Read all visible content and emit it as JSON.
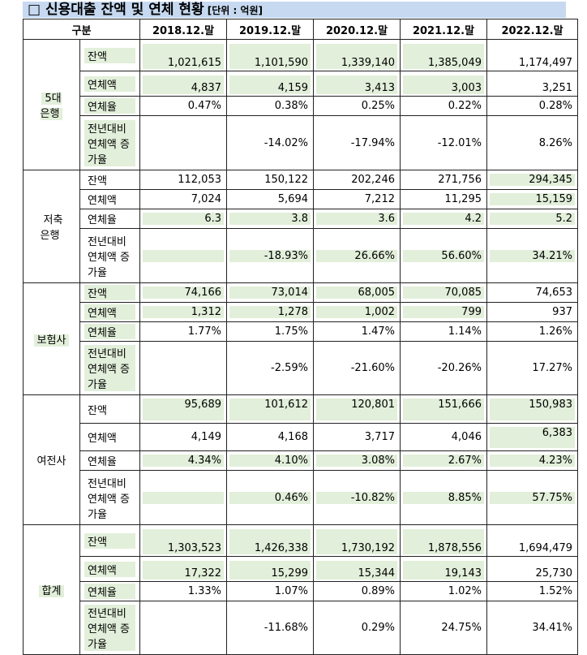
{
  "title": "□ 신용대출 잔액 및 연체 현황",
  "unit": "[단위 : 억원]",
  "table": {
    "header": [
      "구분",
      "2018.12.말",
      "2019.12.말",
      "2020.12.말",
      "2021.12.말",
      "2022.12.말"
    ],
    "groups": [
      {
        "name": "5대\n은행",
        "rows": [
          {
            "label": "잔액",
            "cells": [
              "1,021,615",
              "1,101,590",
              "1,339,140",
              "1,385,049",
              "1,174,497"
            ]
          },
          {
            "label": "연체액",
            "cells": [
              "4,837",
              "4,159",
              "3,413",
              "3,003",
              "3,251"
            ]
          },
          {
            "label": "연체율",
            "cells": [
              "0.47%",
              "0.38%",
              "0.25%",
              "0.22%",
              "0.28%"
            ]
          },
          {
            "label": "전년대비 연체액 증가율",
            "cells": [
              null,
              "-14.02%",
              "-17.94%",
              "-12.01%",
              "8.26%"
            ]
          }
        ]
      },
      {
        "name": "저축\n은행",
        "rows": [
          {
            "label": "잔액",
            "cells": [
              "112,053",
              "150,122",
              "202,246",
              "271,756",
              "294,345"
            ]
          },
          {
            "label": "연체액",
            "cells": [
              "7,024",
              "5,694",
              "7,212",
              "11,295",
              "15,159"
            ]
          },
          {
            "label": "연체율",
            "cells": [
              "6.3",
              "3.8",
              "3.6",
              "4.2",
              "5.2"
            ]
          },
          {
            "label": "전년대비 연체액 증가율",
            "cells": [
              null,
              "-18.93%",
              "26.66%",
              "56.60%",
              "34.21%"
            ]
          }
        ]
      },
      {
        "name": "보험사",
        "rows": [
          {
            "label": "잔액",
            "cells": [
              "74,166",
              "73,014",
              "68,005",
              "70,085",
              "74,653"
            ]
          },
          {
            "label": "연체액",
            "cells": [
              "1,312",
              "1,278",
              "1,002",
              "799",
              "937"
            ]
          },
          {
            "label": "연체율",
            "cells": [
              "1.77%",
              "1.75%",
              "1.47%",
              "1.14%",
              "1.26%"
            ]
          },
          {
            "label": "전년대비 연체액 증가율",
            "cells": [
              null,
              "-2.59%",
              "-21.60%",
              "-20.26%",
              "17.27%"
            ]
          }
        ]
      },
      {
        "name": "여전사",
        "rows": [
          {
            "label": "잔액",
            "cells": [
              "95,689",
              "101,612",
              "120,801",
              "151,666",
              "150,983"
            ]
          },
          {
            "label": "연체액",
            "cells": [
              "4,149",
              "4,168",
              "3,717",
              "4,046",
              "6,383"
            ]
          },
          {
            "label": "연체율",
            "cells": [
              "4.34%",
              "4.10%",
              "3.08%",
              "2.67%",
              "4.23%"
            ]
          },
          {
            "label": "전년대비 연체액 증가율",
            "cells": [
              null,
              "0.46%",
              "-10.82%",
              "8.85%",
              "57.75%"
            ]
          }
        ]
      },
      {
        "name": "합계",
        "rows": [
          {
            "label": "잔액",
            "cells": [
              "1,303,523",
              "1,426,338",
              "1,730,192",
              "1,878,556",
              "1,694,479"
            ]
          },
          {
            "label": "연체액",
            "cells": [
              "17,322",
              "15,299",
              "15,344",
              "19,143",
              "25,730"
            ]
          },
          {
            "label": "연체율",
            "cells": [
              "1.33%",
              "1.07%",
              "0.89%",
              "1.02%",
              "1.52%"
            ]
          },
          {
            "label": "전년대비 연체액 증가율",
            "cells": [
              null,
              "-11.68%",
              "0.29%",
              "24.75%",
              "34.41%"
            ]
          }
        ]
      }
    ]
  }
}
